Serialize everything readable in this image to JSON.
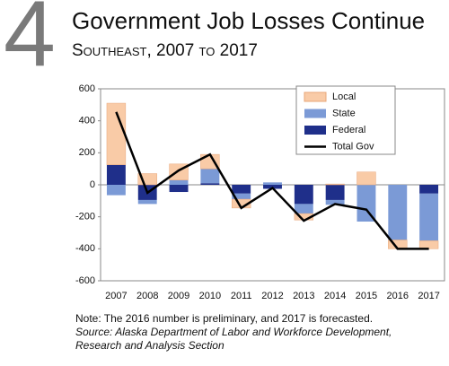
{
  "figure_number": "4",
  "chart_data": {
    "type": "bar",
    "title": "Government Job Losses Continue",
    "subtitle": "Southeast, 2007 to 2017",
    "note": "Note: The 2016 number is preliminary, and 2017 is forecasted.",
    "source": "Source: Alaska Department of Labor and Workforce Development, Research and Analysis Section",
    "categories": [
      "2007",
      "2008",
      "2009",
      "2010",
      "2011",
      "2012",
      "2013",
      "2014",
      "2015",
      "2016",
      "2017"
    ],
    "series": [
      {
        "name": "Local",
        "type": "bar",
        "color": "#f9cba7",
        "values": [
          385,
          70,
          100,
          90,
          -55,
          0,
          -40,
          5,
          80,
          -55,
          -50
        ]
      },
      {
        "name": "State",
        "type": "bar",
        "color": "#7b9ad6",
        "values": [
          -65,
          -25,
          30,
          90,
          -35,
          15,
          -60,
          -30,
          -230,
          -345,
          -295
        ]
      },
      {
        "name": "Federal",
        "type": "bar",
        "color": "#1f2f8a",
        "values": [
          125,
          -95,
          -45,
          10,
          -55,
          -25,
          -120,
          -95,
          0,
          0,
          -55
        ]
      },
      {
        "name": "Total Gov",
        "type": "line",
        "color": "#000000",
        "values": [
          455,
          -50,
          90,
          190,
          -145,
          -20,
          -225,
          -120,
          -155,
          -400,
          -400
        ]
      }
    ],
    "ylim": [
      -600,
      600
    ],
    "yticks": [
      -600,
      -400,
      -200,
      0,
      200,
      400,
      600
    ],
    "legend": "upper right"
  }
}
